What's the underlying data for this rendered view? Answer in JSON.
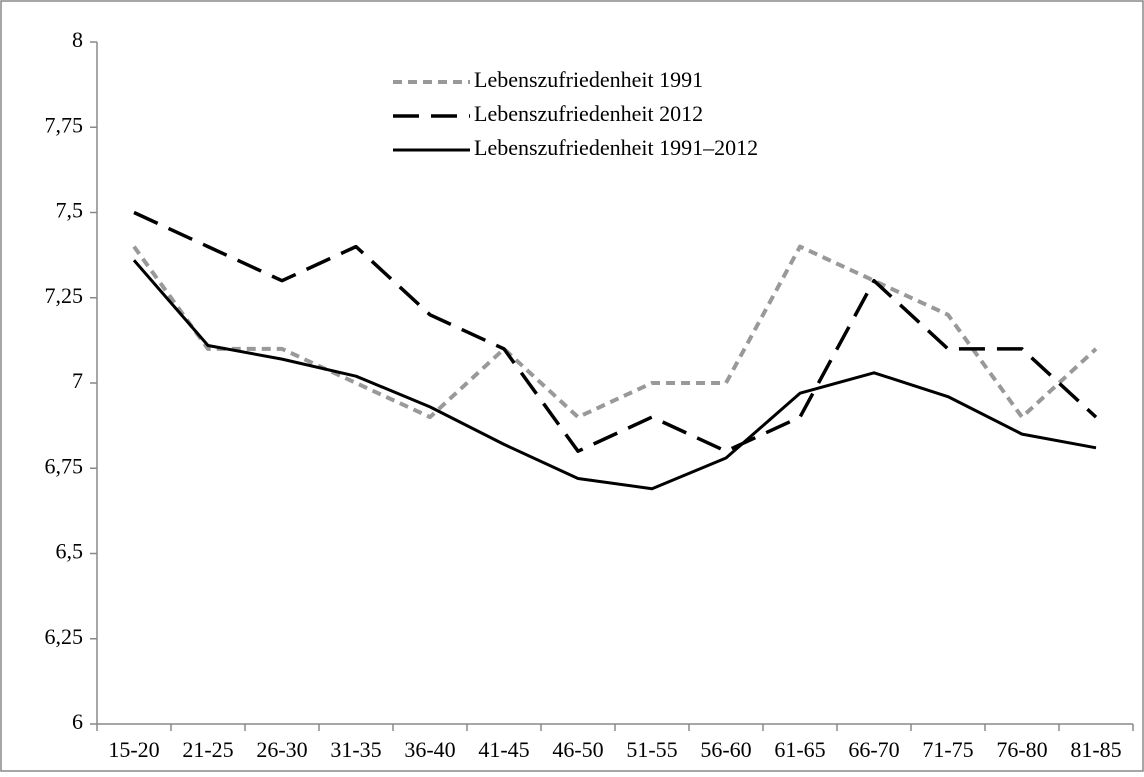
{
  "chart_data": {
    "type": "line",
    "categories": [
      "15-20",
      "21-25",
      "26-30",
      "31-35",
      "36-40",
      "41-45",
      "46-50",
      "51-55",
      "56-60",
      "61-65",
      "66-70",
      "71-75",
      "76-80",
      "81-85"
    ],
    "series": [
      {
        "name": "Lebenszufriedenheit 1991",
        "color": "#999999",
        "style": "short-dash",
        "values": [
          7.4,
          7.1,
          7.1,
          7.0,
          6.9,
          7.1,
          6.9,
          7.0,
          7.0,
          7.4,
          7.3,
          7.2,
          6.9,
          7.1
        ]
      },
      {
        "name": "Lebenszufriedenheit 2012",
        "color": "#000000",
        "style": "long-dash",
        "values": [
          7.5,
          7.4,
          7.3,
          7.4,
          7.2,
          7.1,
          6.8,
          6.9,
          6.8,
          6.9,
          7.3,
          7.1,
          7.1,
          6.9
        ]
      },
      {
        "name": "Lebenszufriedenheit 1991–2012",
        "color": "#000000",
        "style": "solid",
        "values": [
          7.36,
          7.11,
          7.07,
          7.02,
          6.93,
          6.82,
          6.72,
          6.69,
          6.78,
          6.97,
          7.03,
          6.96,
          6.85,
          6.81
        ]
      }
    ],
    "ylim": [
      6,
      8
    ],
    "yticks": [
      6,
      {
        "value": 6.25,
        "label": "6,25"
      },
      {
        "value": 6.5,
        "label": "6,5"
      },
      {
        "value": 6.75,
        "label": "6,75"
      },
      7,
      {
        "value": 7.25,
        "label": "7,25"
      },
      {
        "value": 7.5,
        "label": "7,5"
      },
      {
        "value": 7.75,
        "label": "7,75"
      },
      8
    ],
    "legend": "top-center"
  }
}
